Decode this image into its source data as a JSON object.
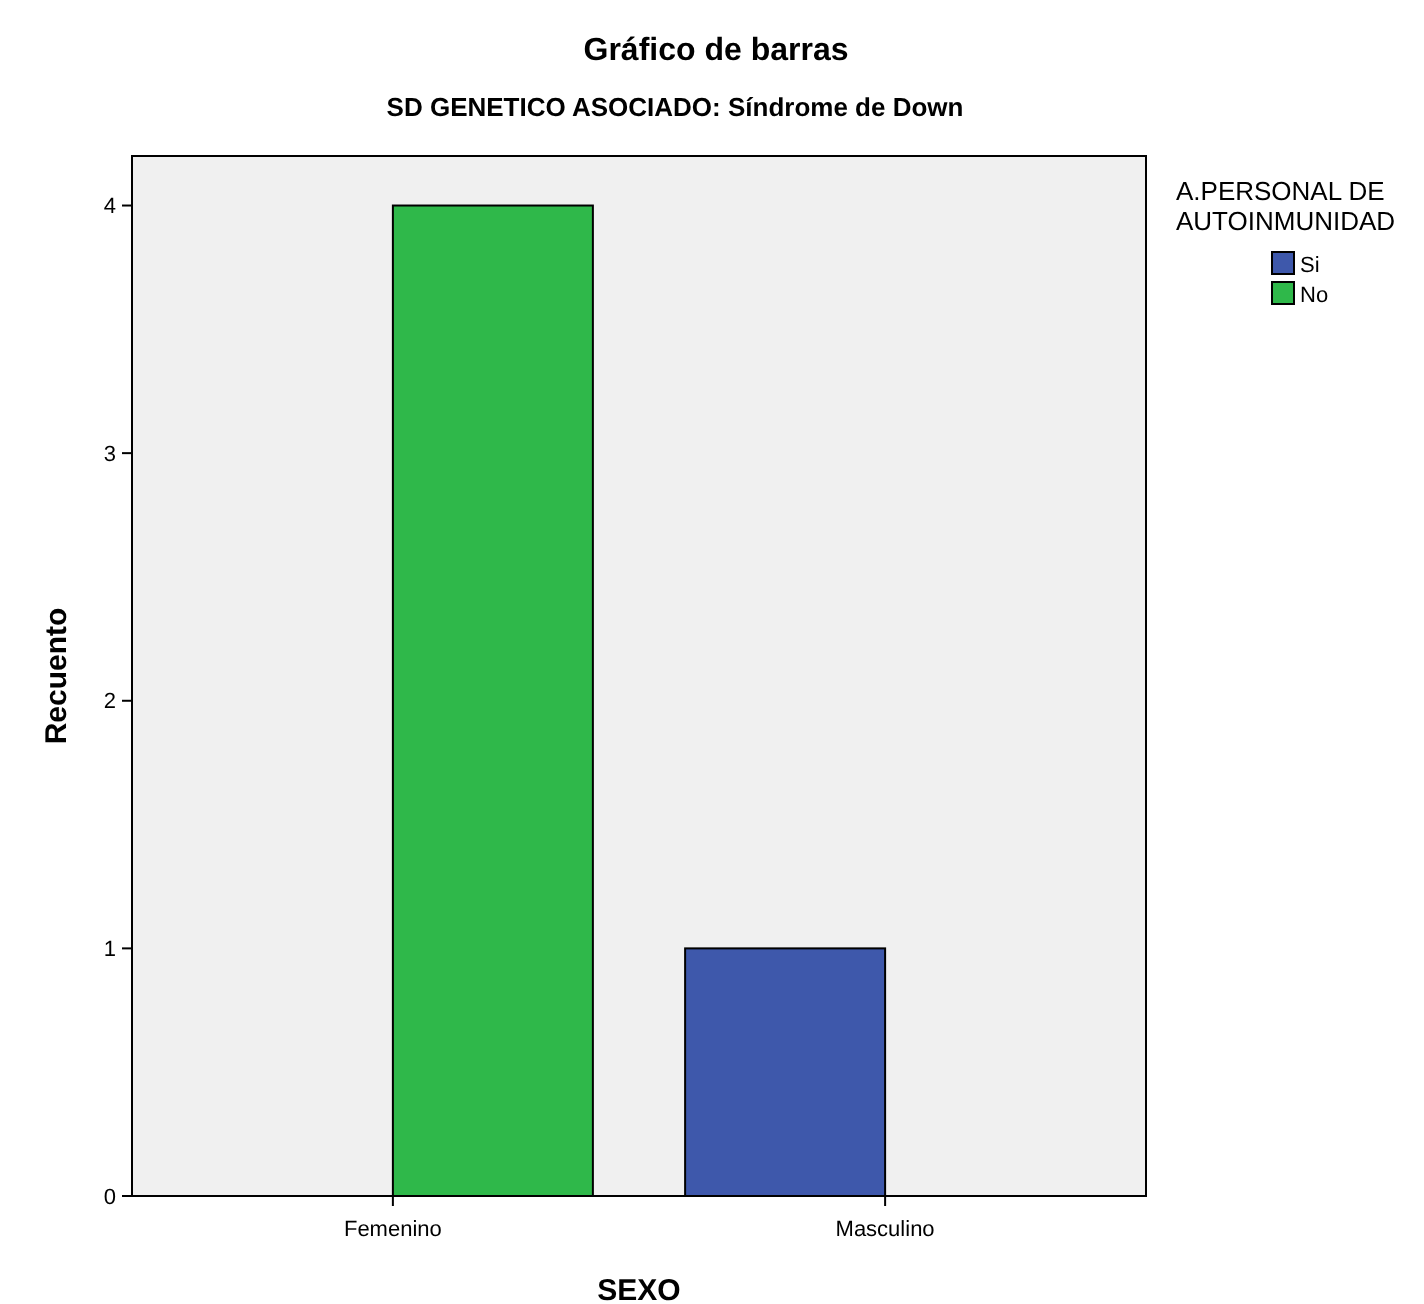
{
  "chart_data": {
    "type": "bar",
    "title": "Gráfico de barras",
    "subtitle": "SD GENETICO ASOCIADO: Síndrome de Down",
    "xlabel": "SEXO",
    "ylabel": "Recuento",
    "legend_title": "A.PERSONAL DE AUTOINMUNIDAD",
    "categories": [
      "Femenino",
      "Masculino"
    ],
    "series": [
      {
        "name": "Si",
        "color": "#3e58ab",
        "values": [
          null,
          1
        ]
      },
      {
        "name": "No",
        "color": "#2fb84a",
        "values": [
          4,
          null
        ]
      }
    ],
    "ylim": [
      0,
      4.2
    ],
    "yticks": [
      0,
      1,
      2,
      3,
      4
    ],
    "grid": false,
    "legend": "top right"
  }
}
